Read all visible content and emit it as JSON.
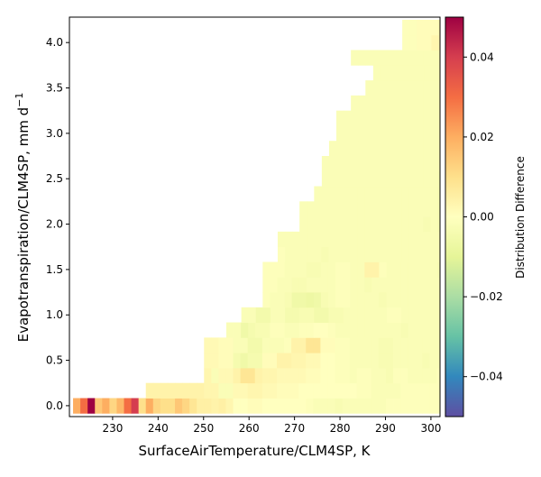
{
  "chart_data": {
    "type": "heatmap",
    "xlabel": "SurfaceAirTemperature/CLM4SP,  K",
    "ylabel": "Evapotranspiration/CLM4SP,  mm d",
    "ylabel_sup": "−1",
    "colorbar_label": "Distribution Difference",
    "xlim": [
      220.5,
      302
    ],
    "ylim": [
      -0.12,
      4.28
    ],
    "x_ticks": [
      230,
      240,
      250,
      260,
      270,
      280,
      290,
      300
    ],
    "y_ticks": [
      0.0,
      0.5,
      1.0,
      1.5,
      2.0,
      2.5,
      3.0,
      3.5,
      4.0
    ],
    "colorbar_range": [
      -0.05,
      0.05
    ],
    "colorbar_ticks": [
      -0.04,
      -0.02,
      0.0,
      0.02,
      0.04
    ],
    "colormap": "Spectral_r",
    "cell_width_K": 1.6,
    "cell_height": 0.167,
    "cells_by_row": [
      {
        "y": 0.0,
        "x_start": 221.3,
        "values": [
          0.02,
          0.03,
          0.05,
          0.015,
          0.02,
          0.012,
          0.018,
          0.03,
          0.04,
          0.01,
          0.02,
          0.012,
          0.01,
          0.01,
          0.015,
          0.012,
          0.008,
          0.005,
          0.005,
          0.004,
          0.005,
          0.003,
          0.0,
          0.0,
          0.001,
          0.001,
          0.0,
          0.0,
          0.0,
          0.0,
          0.0,
          0.0,
          -0.001,
          -0.002,
          -0.002,
          -0.002,
          -0.003,
          -0.002,
          -0.002,
          -0.002,
          -0.002,
          -0.002,
          -0.002,
          -0.001,
          -0.001,
          -0.001,
          -0.001,
          -0.001,
          -0.001,
          -0.001,
          -0.001
        ]
      },
      {
        "y": 0.167,
        "x_start": 237.3,
        "values": [
          0.004,
          0.004,
          0.004,
          0.004,
          0.004,
          0.004,
          0.004,
          0.004,
          0.003,
          0.003,
          -0.002,
          -0.002,
          0.002,
          0.002,
          0.003,
          0.003,
          0.002,
          0.002,
          0.001,
          0.001,
          0.001,
          0.0,
          0.0,
          0.0,
          0.0,
          0.0,
          0.0,
          0.0,
          0.0,
          -0.001,
          -0.001,
          -0.002,
          -0.002,
          -0.002,
          -0.002,
          -0.001,
          -0.001,
          -0.001,
          -0.001,
          -0.001,
          -0.001,
          -0.001,
          -0.001,
          -0.001,
          -0.002,
          -0.003,
          -0.004,
          -0.004,
          -0.002,
          -0.002
        ]
      },
      {
        "y": 0.334,
        "x_start": 250.1,
        "values": [
          0.003,
          -0.002,
          0.002,
          0.002,
          0.004,
          0.008,
          0.008,
          0.004,
          0.003,
          0.003,
          0.002,
          0.002,
          0.002,
          0.002,
          0.001,
          0.001,
          0.0,
          0.0,
          -0.001,
          -0.001,
          -0.002,
          -0.001,
          -0.001,
          -0.002,
          -0.002,
          -0.003,
          -0.001,
          -0.001,
          -0.002,
          -0.002,
          -0.002,
          -0.002,
          -0.001,
          -0.001,
          -0.001,
          -0.001,
          -0.001,
          -0.002
        ]
      },
      {
        "y": 0.5,
        "x_start": 250.1,
        "values": [
          0.002,
          0.002,
          0.001,
          0.001,
          -0.004,
          -0.006,
          -0.004,
          -0.004,
          0.001,
          0.001,
          0.004,
          0.004,
          0.003,
          0.003,
          0.002,
          0.002,
          0.0,
          0.0,
          -0.001,
          -0.001,
          -0.002,
          -0.002,
          -0.002,
          -0.002,
          -0.003,
          -0.003,
          -0.002,
          -0.002,
          -0.002,
          -0.002,
          -0.003,
          -0.002,
          -0.002,
          -0.002,
          -0.003,
          -0.002,
          -0.002,
          -0.002
        ]
      },
      {
        "y": 0.667,
        "x_start": 250.1,
        "values": [
          0.002,
          0.002,
          0.001,
          0.001,
          -0.002,
          -0.002,
          -0.005,
          -0.005,
          -0.002,
          -0.002,
          -0.002,
          -0.001,
          0.004,
          0.004,
          0.008,
          0.008,
          0.001,
          0.001,
          -0.001,
          -0.001,
          -0.002,
          -0.002,
          -0.002,
          -0.002,
          -0.003,
          -0.003,
          -0.002,
          -0.002,
          -0.002,
          -0.002,
          -0.002,
          -0.002,
          -0.002,
          -0.002,
          -0.002,
          -0.002,
          -0.002,
          -0.002
        ]
      },
      {
        "y": 0.834,
        "x_start": 255.0,
        "values": [
          -0.002,
          -0.002,
          -0.006,
          -0.004,
          -0.003,
          -0.003,
          -0.001,
          -0.001,
          -0.002,
          -0.002,
          -0.001,
          -0.001,
          0.0,
          0.0,
          -0.001,
          -0.002,
          -0.002,
          -0.002,
          -0.002,
          -0.002,
          -0.002,
          -0.002,
          -0.002,
          -0.002,
          -0.003,
          -0.002,
          -0.002,
          -0.002,
          -0.002,
          -0.002,
          -0.003,
          -0.003,
          -0.002,
          -0.002
        ]
      },
      {
        "y": 1.0,
        "x_start": 258.3,
        "values": [
          -0.002,
          -0.002,
          -0.005,
          -0.005,
          -0.002,
          -0.002,
          -0.004,
          -0.004,
          -0.003,
          -0.003,
          -0.005,
          -0.005,
          -0.003,
          -0.003,
          -0.002,
          -0.002,
          -0.002,
          -0.002,
          -0.002,
          -0.002,
          -0.001,
          -0.001,
          -0.002,
          -0.002,
          -0.002,
          -0.002,
          -0.002,
          -0.002,
          -0.002,
          -0.002,
          -0.002,
          -0.002
        ]
      },
      {
        "y": 1.167,
        "x_start": 263.0,
        "values": [
          -0.001,
          -0.002,
          -0.002,
          -0.003,
          -0.006,
          -0.006,
          -0.007,
          -0.006,
          -0.003,
          -0.002,
          -0.001,
          -0.001,
          -0.002,
          -0.002,
          -0.002,
          -0.002,
          -0.003,
          -0.002,
          -0.002,
          -0.002,
          -0.002,
          -0.002,
          -0.002,
          -0.002,
          -0.002,
          -0.002,
          -0.002,
          -0.002,
          -0.003
        ]
      },
      {
        "y": 1.334,
        "x_start": 263.0,
        "values": [
          -0.001,
          -0.001,
          -0.002,
          -0.002,
          -0.003,
          -0.003,
          -0.002,
          -0.002,
          -0.002,
          -0.002,
          -0.001,
          -0.001,
          -0.002,
          -0.002,
          -0.003,
          -0.002,
          -0.002,
          -0.002,
          -0.002,
          -0.002,
          -0.002,
          -0.002,
          -0.002,
          -0.002,
          -0.002,
          -0.002,
          -0.002,
          -0.002,
          -0.003
        ]
      },
      {
        "y": 1.5,
        "x_start": 263.0,
        "values": [
          -0.001,
          -0.001,
          -0.001,
          -0.002,
          -0.002,
          -0.002,
          -0.003,
          -0.003,
          -0.002,
          -0.002,
          -0.001,
          -0.001,
          -0.002,
          -0.002,
          0.004,
          0.004,
          -0.001,
          -0.002,
          -0.002,
          -0.002,
          -0.002,
          -0.002,
          -0.002,
          -0.002,
          -0.003,
          -0.002,
          -0.002,
          -0.002,
          -0.002
        ]
      },
      {
        "y": 1.667,
        "x_start": 266.3,
        "values": [
          -0.001,
          -0.002,
          -0.002,
          -0.002,
          -0.002,
          -0.002,
          -0.003,
          -0.002,
          -0.002,
          -0.002,
          -0.002,
          -0.002,
          -0.002,
          -0.002,
          -0.002,
          -0.002,
          -0.002,
          -0.002,
          -0.002,
          -0.002,
          -0.002,
          -0.002,
          -0.002,
          -0.002,
          -0.003,
          -0.002,
          -0.002
        ]
      },
      {
        "y": 1.834,
        "x_start": 266.3,
        "values": [
          -0.002,
          -0.002,
          -0.002,
          -0.002,
          -0.002,
          -0.002,
          -0.002,
          -0.002,
          -0.002,
          -0.002,
          -0.002,
          -0.002,
          -0.002,
          -0.002,
          -0.002,
          -0.002,
          -0.002,
          -0.002,
          -0.002,
          -0.002,
          -0.002,
          -0.002,
          -0.002,
          -0.002,
          -0.003,
          -0.002
        ]
      },
      {
        "y": 2.0,
        "x_start": 271.1,
        "values": [
          -0.002,
          -0.002,
          -0.002,
          -0.002,
          -0.002,
          -0.002,
          -0.002,
          -0.002,
          -0.002,
          -0.002,
          -0.002,
          -0.002,
          -0.002,
          -0.002,
          -0.002,
          -0.002,
          -0.002,
          -0.003,
          -0.002,
          -0.003,
          -0.004,
          -0.003
        ]
      },
      {
        "y": 2.167,
        "x_start": 271.1,
        "values": [
          -0.002,
          -0.002,
          -0.002,
          -0.002,
          -0.002,
          -0.002,
          -0.002,
          -0.002,
          -0.002,
          -0.002,
          -0.002,
          -0.002,
          -0.002,
          -0.002,
          -0.002,
          -0.002,
          -0.002,
          -0.002,
          -0.002,
          -0.003,
          -0.003,
          -0.002
        ]
      },
      {
        "y": 2.334,
        "x_start": 274.3,
        "values": [
          -0.002,
          -0.002,
          -0.002,
          -0.002,
          -0.002,
          -0.002,
          -0.002,
          -0.002,
          -0.002,
          -0.002,
          -0.002,
          -0.002,
          -0.002,
          -0.002,
          -0.002,
          -0.002,
          -0.002,
          -0.003,
          -0.003,
          -0.002
        ]
      },
      {
        "y": 2.5,
        "x_start": 276.0,
        "values": [
          -0.002,
          -0.002,
          -0.002,
          -0.002,
          -0.002,
          -0.002,
          -0.002,
          -0.002,
          -0.002,
          -0.002,
          -0.002,
          -0.002,
          -0.002,
          -0.002,
          -0.002,
          -0.002,
          -0.003,
          -0.002,
          -0.002
        ]
      },
      {
        "y": 2.667,
        "x_start": 276.0,
        "values": [
          -0.002,
          -0.002,
          -0.002,
          -0.002,
          -0.002,
          -0.002,
          -0.002,
          -0.002,
          -0.002,
          -0.002,
          -0.002,
          -0.002,
          -0.002,
          -0.002,
          -0.002,
          -0.002,
          -0.002,
          -0.003,
          -0.002
        ]
      },
      {
        "y": 2.834,
        "x_start": 277.6,
        "values": [
          -0.002,
          -0.002,
          -0.002,
          -0.002,
          -0.002,
          -0.002,
          -0.002,
          -0.002,
          -0.002,
          -0.002,
          -0.002,
          -0.002,
          -0.002,
          -0.002,
          -0.002,
          -0.002,
          -0.002,
          -0.002
        ]
      },
      {
        "y": 3.0,
        "x_start": 279.2,
        "values": [
          -0.002,
          -0.002,
          -0.002,
          -0.002,
          -0.002,
          -0.002,
          -0.002,
          -0.002,
          -0.002,
          -0.002,
          -0.002,
          -0.002,
          -0.002,
          -0.002,
          -0.002,
          -0.002,
          -0.002
        ]
      },
      {
        "y": 3.167,
        "x_start": 279.2,
        "values": [
          -0.002,
          -0.002,
          -0.002,
          -0.002,
          -0.002,
          -0.002,
          -0.002,
          -0.002,
          -0.002,
          -0.002,
          -0.002,
          -0.002,
          -0.002,
          -0.002,
          -0.002,
          -0.002,
          -0.002
        ]
      },
      {
        "y": 3.334,
        "x_start": 282.4,
        "values": [
          -0.002,
          -0.002,
          -0.002,
          -0.002,
          -0.002,
          -0.002,
          -0.002,
          -0.002,
          -0.002,
          -0.002,
          -0.002,
          -0.002,
          -0.002,
          -0.002,
          -0.002
        ]
      },
      {
        "y": 3.5,
        "x_start": 285.6,
        "values": [
          -0.002,
          -0.002,
          -0.002,
          -0.002,
          -0.002,
          -0.002,
          -0.002,
          -0.002,
          -0.002,
          -0.002,
          -0.002,
          -0.002,
          -0.002
        ]
      },
      {
        "y": 3.667,
        "x_start": 287.3,
        "values": [
          -0.002,
          -0.002,
          -0.002,
          -0.002,
          -0.002,
          -0.002,
          -0.002,
          -0.002,
          -0.002,
          -0.002,
          -0.002,
          -0.002
        ]
      },
      {
        "y": 3.834,
        "x_start": 282.4,
        "values": [
          -0.002,
          -0.002,
          -0.002,
          -0.002,
          -0.002,
          -0.002,
          -0.002,
          -0.002,
          -0.002,
          -0.002,
          -0.002,
          -0.002,
          -0.002,
          -0.002,
          -0.002
        ]
      },
      {
        "y": 4.0,
        "x_start": 293.7,
        "values": [
          -0.001,
          -0.001,
          0.001,
          0.001,
          0.003,
          0.003,
          0.003,
          0.003
        ]
      },
      {
        "y": 4.167,
        "x_start": 293.7,
        "values": [
          -0.001,
          -0.001,
          0.001,
          0.001,
          0.001,
          0.003,
          0.003,
          0.003
        ]
      }
    ]
  }
}
